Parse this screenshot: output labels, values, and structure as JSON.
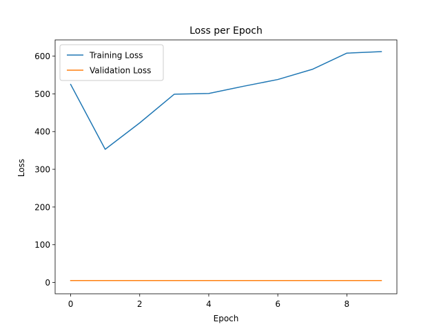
{
  "chart_data": {
    "type": "line",
    "title": "Loss per Epoch",
    "xlabel": "Epoch",
    "ylabel": "Loss",
    "xlim": [
      -0.45,
      9.45
    ],
    "ylim": [
      -30,
      643
    ],
    "xticks": [
      0,
      2,
      4,
      6,
      8
    ],
    "yticks": [
      0,
      100,
      200,
      300,
      400,
      500,
      600
    ],
    "grid": false,
    "legend": {
      "placement": "top-left"
    },
    "x": [
      0,
      1,
      2,
      3,
      4,
      5,
      6,
      7,
      8,
      9
    ],
    "series": [
      {
        "name": "Training Loss",
        "color": "#1f77b4",
        "values": [
          525,
          353,
          423,
          499,
          501,
          520,
          538,
          565,
          608,
          612
        ]
      },
      {
        "name": "Validation Loss",
        "color": "#ff7f0e",
        "values": [
          5,
          5,
          5,
          5,
          5,
          5,
          5,
          5,
          5,
          5
        ]
      }
    ]
  }
}
